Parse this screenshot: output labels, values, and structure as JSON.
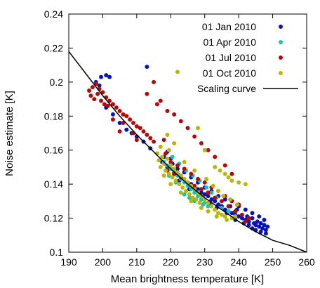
{
  "chart_data": {
    "type": "scatter",
    "title": "",
    "xlabel": "Mean brightness temperature [K]",
    "ylabel": "Noise estimate [K]",
    "xlim": [
      190,
      260
    ],
    "ylim": [
      0.1,
      0.24
    ],
    "xticks": [
      "190",
      "200",
      "210",
      "220",
      "230",
      "240",
      "250",
      "260"
    ],
    "yticks": [
      "0.1",
      "0.12",
      "0.14",
      "0.16",
      "0.18",
      "0.2",
      "0.22",
      "0.24"
    ],
    "grid": false,
    "legend_position": "top-right",
    "series": [
      {
        "name": "01 Jan 2010",
        "color": "#0a14b4",
        "points": [
          [
            198,
            0.2
          ],
          [
            199,
            0.198
          ],
          [
            199.5,
            0.203
          ],
          [
            201,
            0.204
          ],
          [
            202,
            0.203
          ],
          [
            213,
            0.209
          ],
          [
            201,
            0.185
          ],
          [
            203,
            0.181
          ],
          [
            205,
            0.176
          ],
          [
            207,
            0.172
          ],
          [
            208.5,
            0.17
          ],
          [
            210,
            0.168
          ],
          [
            212,
            0.165
          ],
          [
            214,
            0.161
          ],
          [
            216,
            0.158
          ],
          [
            218,
            0.156
          ],
          [
            217.5,
            0.153
          ],
          [
            219,
            0.15
          ],
          [
            220.5,
            0.152
          ],
          [
            221,
            0.147
          ],
          [
            222,
            0.146
          ],
          [
            223,
            0.145
          ],
          [
            224,
            0.143
          ],
          [
            225,
            0.141
          ],
          [
            226,
            0.14
          ],
          [
            227,
            0.138
          ],
          [
            228,
            0.137
          ],
          [
            229,
            0.135
          ],
          [
            230,
            0.134
          ],
          [
            231,
            0.133
          ],
          [
            232,
            0.131
          ],
          [
            233,
            0.13
          ],
          [
            234,
            0.128
          ],
          [
            235,
            0.127
          ],
          [
            236,
            0.125
          ],
          [
            237,
            0.124
          ],
          [
            238,
            0.123
          ],
          [
            239,
            0.122
          ],
          [
            240,
            0.121
          ],
          [
            241,
            0.12
          ],
          [
            242,
            0.119
          ],
          [
            243,
            0.118
          ],
          [
            244,
            0.12
          ],
          [
            244.5,
            0.117
          ],
          [
            245,
            0.116
          ],
          [
            245.5,
            0.118
          ],
          [
            246,
            0.115
          ],
          [
            246.5,
            0.117
          ],
          [
            247,
            0.114
          ],
          [
            247.5,
            0.116
          ],
          [
            248,
            0.113
          ],
          [
            248.5,
            0.115
          ],
          [
            247.5,
            0.119
          ],
          [
            246,
            0.121
          ],
          [
            244,
            0.123
          ],
          [
            242,
            0.125
          ],
          [
            240,
            0.127
          ],
          [
            238,
            0.13
          ],
          [
            236,
            0.131
          ],
          [
            234,
            0.133
          ],
          [
            232,
            0.136
          ],
          [
            230,
            0.138
          ],
          [
            228,
            0.141
          ],
          [
            226,
            0.144
          ],
          [
            224,
            0.147
          ],
          [
            222,
            0.149
          ],
          [
            220,
            0.155
          ],
          [
            219,
            0.159
          ],
          [
            222.5,
            0.142
          ],
          [
            225.5,
            0.137
          ],
          [
            229,
            0.131
          ],
          [
            231.5,
            0.129
          ],
          [
            233.5,
            0.126
          ],
          [
            236.5,
            0.123
          ],
          [
            239,
            0.119
          ],
          [
            241.5,
            0.117
          ],
          [
            243,
            0.116
          ],
          [
            245,
            0.113
          ],
          [
            246.5,
            0.112
          ],
          [
            248,
            0.111
          ],
          [
            244,
            0.114
          ],
          [
            242.5,
            0.121
          ],
          [
            239.5,
            0.125
          ],
          [
            237.5,
            0.127
          ]
        ]
      },
      {
        "name": "01 Apr 2010",
        "color": "#17c3b8",
        "points": [
          [
            218,
            0.153
          ],
          [
            219,
            0.151
          ],
          [
            220,
            0.149
          ],
          [
            221,
            0.147
          ],
          [
            222,
            0.145
          ],
          [
            223,
            0.143
          ],
          [
            224,
            0.141
          ],
          [
            225,
            0.139
          ],
          [
            226,
            0.137
          ],
          [
            227,
            0.135
          ],
          [
            228,
            0.133
          ],
          [
            229,
            0.131
          ],
          [
            230,
            0.129
          ],
          [
            231,
            0.127
          ],
          [
            220.5,
            0.156
          ],
          [
            222.5,
            0.152
          ],
          [
            224.5,
            0.148
          ],
          [
            226.5,
            0.145
          ],
          [
            228.5,
            0.142
          ],
          [
            230.5,
            0.138
          ],
          [
            232,
            0.135
          ],
          [
            233.5,
            0.132
          ],
          [
            224,
            0.134
          ],
          [
            225.5,
            0.132
          ],
          [
            227,
            0.13
          ],
          [
            229.5,
            0.128
          ],
          [
            235,
            0.126
          ],
          [
            237,
            0.124
          ],
          [
            221.5,
            0.141
          ],
          [
            219.5,
            0.145
          ]
        ]
      },
      {
        "name": "01 Jul 2010",
        "color": "#b50a0a",
        "points": [
          [
            196,
            0.195
          ],
          [
            196.5,
            0.192
          ],
          [
            197,
            0.197
          ],
          [
            197.5,
            0.19
          ],
          [
            198,
            0.199
          ],
          [
            198.5,
            0.193
          ],
          [
            199,
            0.196
          ],
          [
            199.5,
            0.189
          ],
          [
            200,
            0.194
          ],
          [
            200.5,
            0.187
          ],
          [
            201,
            0.191
          ],
          [
            201.5,
            0.186
          ],
          [
            202,
            0.189
          ],
          [
            203,
            0.187
          ],
          [
            204,
            0.185
          ],
          [
            205,
            0.183
          ],
          [
            206,
            0.181
          ],
          [
            207,
            0.18
          ],
          [
            208,
            0.178
          ],
          [
            209,
            0.176
          ],
          [
            210,
            0.174
          ],
          [
            211,
            0.173
          ],
          [
            212,
            0.171
          ],
          [
            213,
            0.169
          ],
          [
            214,
            0.167
          ],
          [
            215,
            0.165
          ],
          [
            213,
            0.193
          ],
          [
            216,
            0.187
          ],
          [
            218,
            0.166
          ],
          [
            215,
            0.2
          ],
          [
            217,
            0.189
          ],
          [
            219,
            0.183
          ],
          [
            221,
            0.181
          ],
          [
            223,
            0.177
          ],
          [
            225,
            0.173
          ],
          [
            227,
            0.168
          ],
          [
            229,
            0.164
          ],
          [
            231,
            0.16
          ],
          [
            233,
            0.156
          ],
          [
            236,
            0.151
          ],
          [
            238,
            0.146
          ],
          [
            203,
            0.178
          ],
          [
            206,
            0.176
          ],
          [
            209,
            0.17
          ],
          [
            219,
            0.148
          ],
          [
            221,
            0.146
          ],
          [
            223,
            0.144
          ],
          [
            225,
            0.141
          ],
          [
            227,
            0.139
          ],
          [
            229,
            0.137
          ],
          [
            231,
            0.135
          ],
          [
            233,
            0.132
          ],
          [
            235,
            0.13
          ],
          [
            237,
            0.127
          ],
          [
            239,
            0.124
          ],
          [
            241,
            0.122
          ],
          [
            243,
            0.12
          ],
          [
            240,
            0.128
          ],
          [
            238,
            0.13
          ],
          [
            236,
            0.133
          ],
          [
            234,
            0.136
          ],
          [
            232,
            0.138
          ],
          [
            230,
            0.141
          ],
          [
            228,
            0.143
          ],
          [
            226,
            0.146
          ],
          [
            224,
            0.149
          ],
          [
            222,
            0.151
          ],
          [
            220,
            0.153
          ],
          [
            205,
            0.171
          ],
          [
            210,
            0.166
          ],
          [
            218.5,
            0.158
          ],
          [
            242,
            0.118
          ]
        ]
      },
      {
        "name": "01 Oct 2010",
        "color": "#b8b80a",
        "points": [
          [
            216,
            0.158
          ],
          [
            216.5,
            0.154
          ],
          [
            217,
            0.15
          ],
          [
            217.5,
            0.156
          ],
          [
            218,
            0.152
          ],
          [
            218.5,
            0.148
          ],
          [
            219,
            0.155
          ],
          [
            219.5,
            0.146
          ],
          [
            220,
            0.151
          ],
          [
            220.5,
            0.144
          ],
          [
            221,
            0.149
          ],
          [
            221.5,
            0.142
          ],
          [
            222,
            0.147
          ],
          [
            222.5,
            0.14
          ],
          [
            223,
            0.145
          ],
          [
            223.5,
            0.138
          ],
          [
            224,
            0.143
          ],
          [
            224.5,
            0.136
          ],
          [
            225,
            0.141
          ],
          [
            225.5,
            0.134
          ],
          [
            226,
            0.139
          ],
          [
            226.5,
            0.132
          ],
          [
            227,
            0.137
          ],
          [
            227.5,
            0.131
          ],
          [
            228,
            0.135
          ],
          [
            228.5,
            0.129
          ],
          [
            229,
            0.133
          ],
          [
            230,
            0.131
          ],
          [
            231,
            0.129
          ],
          [
            232,
            0.127
          ],
          [
            233,
            0.125
          ],
          [
            234,
            0.123
          ],
          [
            235,
            0.122
          ],
          [
            236,
            0.121
          ],
          [
            238,
            0.12
          ],
          [
            239,
            0.121
          ],
          [
            221,
            0.164
          ],
          [
            219,
            0.169
          ],
          [
            222,
            0.206
          ],
          [
            228,
            0.173
          ],
          [
            230,
            0.16
          ],
          [
            233,
            0.15
          ],
          [
            234.5,
            0.148
          ],
          [
            236,
            0.146
          ],
          [
            237,
            0.144
          ],
          [
            238,
            0.142
          ],
          [
            240,
            0.141
          ],
          [
            242,
            0.14
          ],
          [
            218,
            0.145
          ],
          [
            220,
            0.14
          ],
          [
            223,
            0.135
          ],
          [
            226,
            0.13
          ],
          [
            229,
            0.126
          ],
          [
            231,
            0.124
          ],
          [
            233.5,
            0.121
          ],
          [
            236.5,
            0.119
          ],
          [
            217,
            0.162
          ],
          [
            219.5,
            0.16
          ],
          [
            224,
            0.153
          ],
          [
            227,
            0.148
          ],
          [
            230.5,
            0.143
          ],
          [
            232.5,
            0.139
          ],
          [
            234,
            0.136
          ],
          [
            235.5,
            0.133
          ],
          [
            237.5,
            0.131
          ],
          [
            239.5,
            0.128
          ]
        ]
      },
      {
        "name": "Scaling curve",
        "color": "#000000",
        "line": true,
        "points": [
          [
            190,
            0.218
          ],
          [
            195,
            0.205
          ],
          [
            200,
            0.192
          ],
          [
            205,
            0.18
          ],
          [
            210,
            0.169
          ],
          [
            215,
            0.159
          ],
          [
            220,
            0.149
          ],
          [
            225,
            0.14
          ],
          [
            230,
            0.132
          ],
          [
            235,
            0.125
          ],
          [
            240,
            0.118
          ],
          [
            245,
            0.112
          ],
          [
            250,
            0.107
          ],
          [
            255,
            0.104
          ],
          [
            260,
            0.1
          ]
        ]
      }
    ]
  }
}
